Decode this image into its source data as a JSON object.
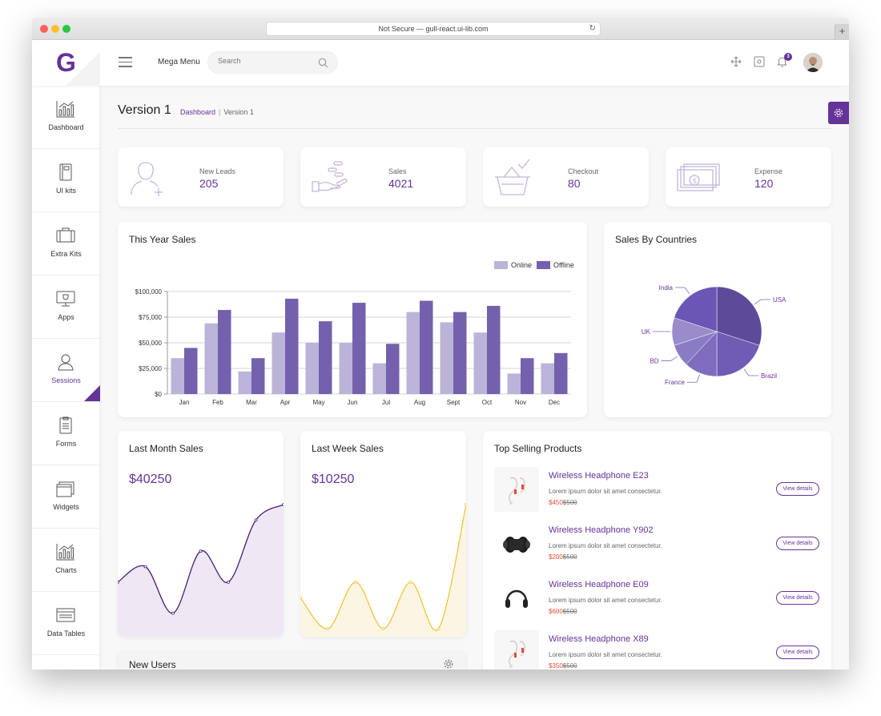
{
  "browser": {
    "url": "Not Secure — gull-react.ui-lib.com"
  },
  "header": {
    "logo_letter": "G",
    "mega_menu": "Mega Menu",
    "search_placeholder": "Search",
    "notification_count": "3"
  },
  "sidebar": {
    "items": [
      {
        "label": "Dashboard",
        "icon": "bar-chart-icon"
      },
      {
        "label": "UI kits",
        "icon": "book-icon"
      },
      {
        "label": "Extra Kits",
        "icon": "suitcase-icon"
      },
      {
        "label": "Apps",
        "icon": "monitor-icon"
      },
      {
        "label": "Sessions",
        "icon": "user-icon",
        "active": true
      },
      {
        "label": "Forms",
        "icon": "clipboard-icon"
      },
      {
        "label": "Widgets",
        "icon": "stacked-windows-icon"
      },
      {
        "label": "Charts",
        "icon": "bar-chart-icon"
      },
      {
        "label": "Data Tables",
        "icon": "table-icon"
      }
    ]
  },
  "page": {
    "title": "Version 1",
    "breadcrumb": [
      "Dashboard",
      "Version 1"
    ]
  },
  "stats": [
    {
      "label": "New Leads",
      "value": "205",
      "icon": "add-user-icon"
    },
    {
      "label": "Sales",
      "value": "4021",
      "icon": "coin-hand-icon"
    },
    {
      "label": "Checkout",
      "value": "80",
      "icon": "basket-check-icon"
    },
    {
      "label": "Expense",
      "value": "120",
      "icon": "money-icon"
    }
  ],
  "colors": {
    "accent": "#663399",
    "online": "#bbb4d8",
    "offline": "#7461ad",
    "last_month_line": "#4b1a78",
    "last_month_fill": "#ede8f3",
    "last_week_line": "#f0c43d",
    "last_week_fill": "#fdf5e3"
  },
  "chart_data": [
    {
      "type": "bar",
      "title": "This Year Sales",
      "categories": [
        "Jan",
        "Feb",
        "Mar",
        "Apr",
        "May",
        "Jun",
        "Jul",
        "Aug",
        "Sept",
        "Oct",
        "Nov",
        "Dec"
      ],
      "series": [
        {
          "name": "Online",
          "values": [
            35000,
            69000,
            22000,
            60000,
            50000,
            50000,
            30000,
            80000,
            70000,
            60000,
            20000,
            30000
          ]
        },
        {
          "name": "Offline",
          "values": [
            45000,
            82000,
            35000,
            93000,
            71000,
            89000,
            49000,
            91000,
            80000,
            86000,
            35000,
            40000
          ]
        }
      ],
      "y_ticks": [
        "$0",
        "$25,000",
        "$50,000",
        "$75,000",
        "$100,000"
      ],
      "ylim": [
        0,
        100000
      ],
      "grid": true,
      "legend": "top-right"
    },
    {
      "type": "pie",
      "title": "Sales By Countries",
      "slices": [
        {
          "label": "USA",
          "value": 30,
          "color": "#5c4b99"
        },
        {
          "label": "Brazil",
          "value": 20,
          "color": "#6f5cb4"
        },
        {
          "label": "France",
          "value": 12,
          "color": "#7e6dbd"
        },
        {
          "label": "BD",
          "value": 8,
          "color": "#8a7bc4"
        },
        {
          "label": "UK",
          "value": 10,
          "color": "#9a8ccb"
        },
        {
          "label": "India",
          "value": 20,
          "color": "#6a56b5"
        }
      ]
    },
    {
      "type": "area",
      "title": "Last Month Sales",
      "amount": "$40250",
      "values": [
        3,
        4,
        1,
        5,
        3,
        7,
        8
      ]
    },
    {
      "type": "area",
      "title": "Last Week Sales",
      "amount": "$10250",
      "values": [
        2,
        0,
        3,
        0,
        3,
        0,
        8
      ]
    }
  ],
  "top_products": {
    "title": "Top Selling Products",
    "button_label": "View details",
    "items": [
      {
        "name": "Wireless Headphone E23",
        "desc": "Lorem ipsum dolor sit amet consectetur.",
        "price": "$450",
        "old_price": "$500",
        "thumb": "earbuds-icon"
      },
      {
        "name": "Wireless Headphone Y902",
        "desc": "Lorem ipsum dolor sit amet consectetur.",
        "price": "$200",
        "old_price": "$500",
        "thumb": "speaker-icon"
      },
      {
        "name": "Wireless Headphone E09",
        "desc": "Lorem ipsum dolor sit amet consectetur.",
        "price": "$600",
        "old_price": "$500",
        "thumb": "headphones-icon"
      },
      {
        "name": "Wireless Headphone X89",
        "desc": "Lorem ipsum dolor sit amet consectetur.",
        "price": "$350",
        "old_price": "$500",
        "thumb": "earbuds-icon"
      }
    ]
  },
  "new_users": {
    "title": "New Users"
  }
}
